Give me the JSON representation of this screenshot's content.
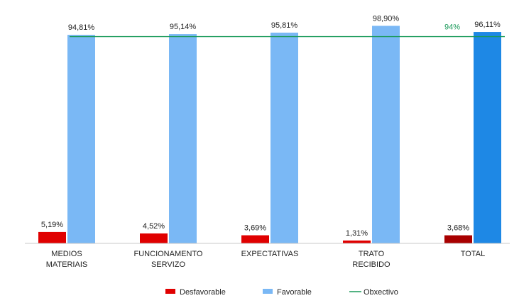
{
  "chart_data": {
    "type": "bar",
    "categories": [
      [
        "MEDIOS",
        "MATERIAIS"
      ],
      [
        "FUNCIONAMENTO",
        "SERVIZO"
      ],
      [
        "EXPECTATIVAS"
      ],
      [
        "TRATO",
        "RECIBIDO"
      ],
      [
        "TOTAL"
      ]
    ],
    "series": [
      {
        "name": "Desfavorable",
        "values": [
          5.19,
          4.52,
          3.69,
          1.31,
          3.68
        ],
        "labels": [
          "5,19%",
          "4,52%",
          "3,69%",
          "1,31%",
          "3,68%"
        ],
        "color": "#e00000",
        "total_color": "#a80000"
      },
      {
        "name": "Favorable",
        "values": [
          94.81,
          95.14,
          95.81,
          98.9,
          96.11
        ],
        "labels": [
          "94,81%",
          "95,14%",
          "95,81%",
          "98,90%",
          "96,11%"
        ],
        "color": "#7ab8f5",
        "total_color": "#1e88e5"
      }
    ],
    "objective": {
      "name": "Obxectivo",
      "value": 94,
      "label": "94%",
      "color": "#1a9a5a"
    },
    "ylim": [
      0,
      100
    ],
    "grid": false,
    "legend_position": "bottom"
  }
}
